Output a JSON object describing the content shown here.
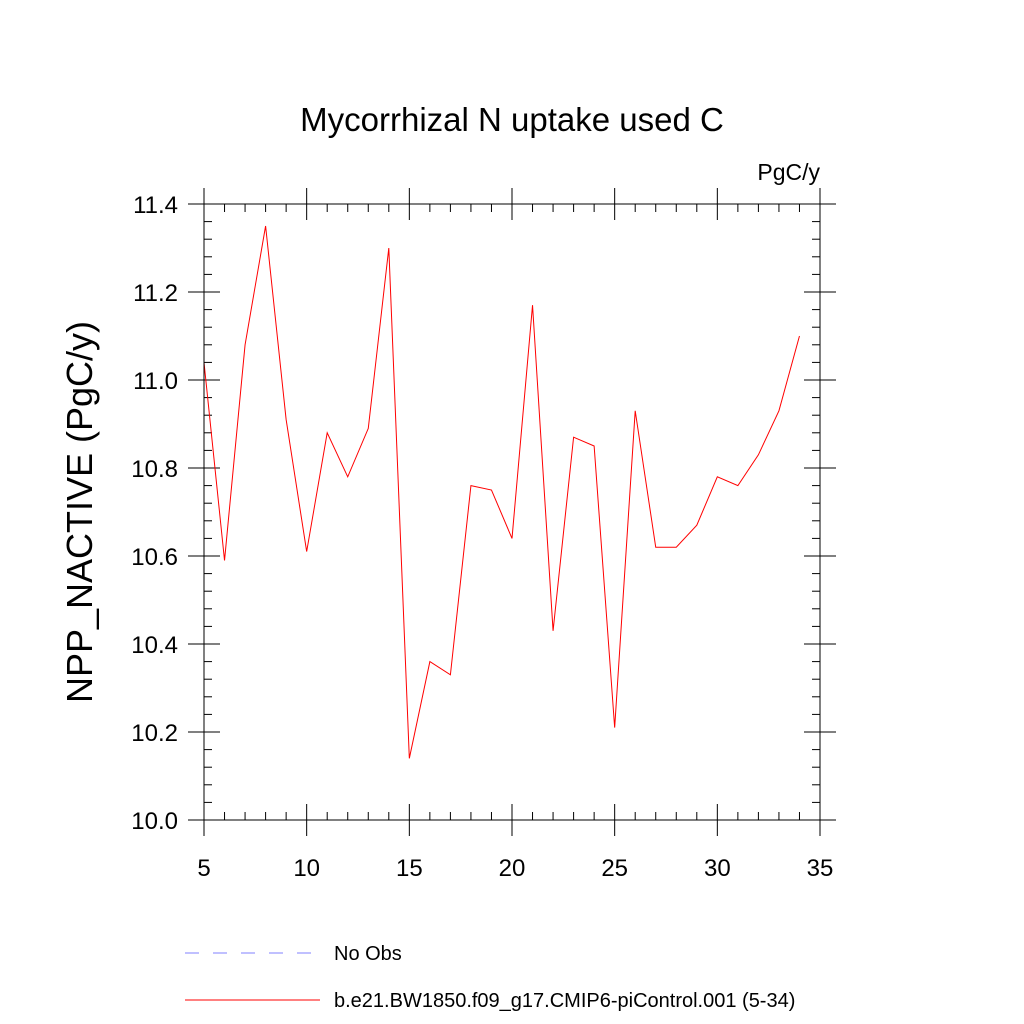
{
  "chart_data": {
    "type": "line",
    "title": "Mycorrhizal N uptake used C",
    "units_label": "PgC/y",
    "ylabel": "NPP_NACTIVE  (PgC/y)",
    "xlabel": "",
    "xlim": [
      5,
      35
    ],
    "ylim": [
      10.0,
      11.4
    ],
    "x_ticks": [
      5,
      10,
      15,
      20,
      25,
      30,
      35
    ],
    "x_tick_labels": [
      "5",
      "10",
      "15",
      "20",
      "25",
      "30",
      "35"
    ],
    "y_ticks": [
      10.0,
      10.2,
      10.4,
      10.6,
      10.8,
      11.0,
      11.2,
      11.4
    ],
    "y_tick_labels": [
      "10.0",
      "10.2",
      "10.4",
      "10.6",
      "10.8",
      "11.0",
      "11.2",
      "11.4"
    ],
    "x_minor_step": 1,
    "y_minor_step": 0.04,
    "grid": false,
    "legend_position": "bottom",
    "series": [
      {
        "name": "b.e21.BW1850.f09_g17.CMIP6-piControl.001 (5-34)",
        "color": "#ff0000",
        "style": "solid",
        "x": [
          5,
          6,
          7,
          8,
          9,
          10,
          11,
          12,
          13,
          14,
          15,
          16,
          17,
          18,
          19,
          20,
          21,
          22,
          23,
          24,
          25,
          26,
          27,
          28,
          29,
          30,
          31,
          32,
          33,
          34
        ],
        "values": [
          11.04,
          10.59,
          11.08,
          11.35,
          10.91,
          10.61,
          10.88,
          10.78,
          10.89,
          11.3,
          10.14,
          10.36,
          10.33,
          10.76,
          10.75,
          10.64,
          11.17,
          10.43,
          10.87,
          10.85,
          10.21,
          10.93,
          10.62,
          10.62,
          10.67,
          10.78,
          10.76,
          10.83,
          10.93,
          11.1
        ]
      }
    ],
    "legend": [
      {
        "label": "No Obs",
        "color": "#8080ff",
        "style": "dashed"
      },
      {
        "label": "b.e21.BW1850.f09_g17.CMIP6-piControl.001 (5-34)",
        "color": "#ff0000",
        "style": "solid"
      }
    ]
  }
}
